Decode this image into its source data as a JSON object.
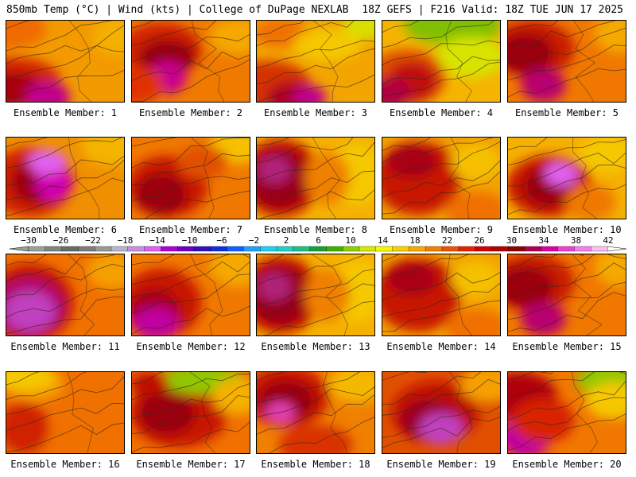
{
  "header": {
    "left": "850mb Temp (°C) | Wind (kts) | College of DuPage NEXLAB",
    "right": "18Z GEFS | F216 Valid: 18Z TUE JUN 17 2025"
  },
  "panels": [
    {
      "label": "Ensemble Member: 1",
      "style": 0
    },
    {
      "label": "Ensemble Member: 2",
      "style": 1
    },
    {
      "label": "Ensemble Member: 3",
      "style": 2
    },
    {
      "label": "Ensemble Member: 4",
      "style": 3
    },
    {
      "label": "Ensemble Member: 5",
      "style": 4
    },
    {
      "label": "Ensemble Member: 6",
      "style": 5
    },
    {
      "label": "Ensemble Member: 7",
      "style": 6
    },
    {
      "label": "Ensemble Member: 8",
      "style": 7
    },
    {
      "label": "Ensemble Member: 9",
      "style": 8
    },
    {
      "label": "Ensemble Member: 10",
      "style": 9
    },
    {
      "label": "Ensemble Member: 11",
      "style": 10
    },
    {
      "label": "Ensemble Member: 12",
      "style": 11
    },
    {
      "label": "Ensemble Member: 13",
      "style": 7
    },
    {
      "label": "Ensemble Member: 14",
      "style": 8
    },
    {
      "label": "Ensemble Member: 15",
      "style": 4
    },
    {
      "label": "Ensemble Member: 16",
      "style": 12
    },
    {
      "label": "Ensemble Member: 17",
      "style": 13
    },
    {
      "label": "Ensemble Member: 18",
      "style": 14
    },
    {
      "label": "Ensemble Member: 19",
      "style": 15
    },
    {
      "label": "Ensemble Member: 20",
      "style": 16
    }
  ],
  "colorbar": {
    "ticks": [
      "−30",
      "−26",
      "−22",
      "−18",
      "−14",
      "−10",
      "−6",
      "−2",
      "2",
      "6",
      "10",
      "14",
      "18",
      "22",
      "26",
      "30",
      "34",
      "38",
      "42"
    ],
    "colors": [
      "#9aa09a",
      "#7f857f",
      "#666c66",
      "#7d7d7d",
      "#999999",
      "#b6b6c8",
      "#c890e0",
      "#e060f0",
      "#b000d8",
      "#6e00c8",
      "#3010c0",
      "#1030e0",
      "#1060ff",
      "#20a0ff",
      "#20d0f0",
      "#20d0c0",
      "#20c080",
      "#18a038",
      "#40b000",
      "#90d000",
      "#d8e800",
      "#f8f800",
      "#f8d000",
      "#f8a800",
      "#f08000",
      "#f05000",
      "#e82000",
      "#d00000",
      "#b00000",
      "#900000",
      "#b00050",
      "#e000a0",
      "#f040d0",
      "#f080e8",
      "#f8c0f0"
    ]
  }
}
